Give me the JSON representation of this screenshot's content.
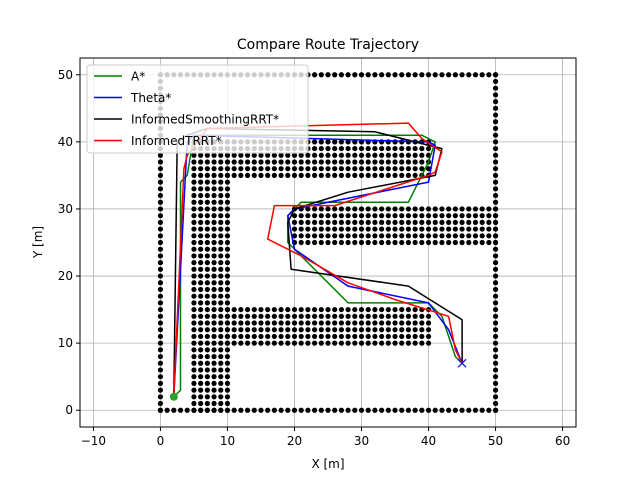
{
  "chart_data": {
    "type": "line",
    "title": "Compare Route Trajectory",
    "xlabel": "X [m]",
    "ylabel": "Y [m]",
    "xlim": [
      -12,
      62
    ],
    "ylim": [
      -2.5,
      52.5
    ],
    "xticks": [
      -10,
      0,
      10,
      20,
      30,
      40,
      50,
      60
    ],
    "yticks": [
      0,
      10,
      20,
      30,
      40,
      50
    ],
    "grid": true,
    "legend_position": "top-left",
    "start": [
      2,
      2
    ],
    "goal": [
      45,
      7
    ],
    "obstacle_segments": [
      {
        "orient": "h",
        "y": 0,
        "x0": 0,
        "x1": 50,
        "step": 1
      },
      {
        "orient": "h",
        "y": 50,
        "x0": 0,
        "x1": 50,
        "step": 1
      },
      {
        "orient": "v",
        "x": 0,
        "y0": 0,
        "y1": 50,
        "step": 1
      },
      {
        "orient": "v",
        "x": 50,
        "y0": 0,
        "y1": 50,
        "step": 1
      },
      {
        "orient": "block",
        "x0": 5,
        "x1": 10,
        "y0": 0,
        "y1": 40,
        "step": 1
      },
      {
        "orient": "block",
        "x0": 10,
        "x1": 40,
        "y0": 35,
        "y1": 40,
        "step": 1
      },
      {
        "orient": "block",
        "x0": 10,
        "x1": 40,
        "y0": 10,
        "y1": 15,
        "step": 1
      },
      {
        "orient": "block",
        "x0": 20,
        "x1": 50,
        "y0": 25,
        "y1": 30,
        "step": 1
      }
    ],
    "series": [
      {
        "name": "A*",
        "color": "#008000",
        "points": [
          [
            2,
            2
          ],
          [
            3,
            3
          ],
          [
            3,
            34
          ],
          [
            4,
            35
          ],
          [
            5,
            41
          ],
          [
            39,
            41
          ],
          [
            41,
            40
          ],
          [
            40,
            37
          ],
          [
            37,
            31
          ],
          [
            21,
            31
          ],
          [
            19,
            29
          ],
          [
            19,
            25
          ],
          [
            28,
            16
          ],
          [
            40,
            16
          ],
          [
            42,
            14
          ],
          [
            44,
            8
          ],
          [
            45,
            7
          ]
        ]
      },
      {
        "name": "Theta*",
        "color": "#0000ff",
        "points": [
          [
            2,
            2
          ],
          [
            4,
            40
          ],
          [
            5,
            41
          ],
          [
            40,
            40
          ],
          [
            41,
            39.5
          ],
          [
            40,
            34
          ],
          [
            20,
            30
          ],
          [
            19,
            29
          ],
          [
            20,
            24
          ],
          [
            28,
            18.5
          ],
          [
            40,
            16
          ],
          [
            43,
            12
          ],
          [
            45,
            7
          ]
        ]
      },
      {
        "name": "InformedSmoothingRRT*",
        "color": "#000000",
        "points": [
          [
            2,
            2
          ],
          [
            2.5,
            40
          ],
          [
            4,
            41
          ],
          [
            7,
            42
          ],
          [
            32,
            41.5
          ],
          [
            36,
            40.5
          ],
          [
            42,
            39
          ],
          [
            41,
            35
          ],
          [
            28,
            32.5
          ],
          [
            20,
            30
          ],
          [
            19,
            28
          ],
          [
            19.5,
            21
          ],
          [
            37,
            18.5
          ],
          [
            45,
            13.5
          ],
          [
            45,
            7
          ]
        ]
      },
      {
        "name": "InformedTRRT*",
        "color": "#ff0000",
        "points": [
          [
            2,
            2
          ],
          [
            3.5,
            36
          ],
          [
            4,
            38
          ],
          [
            7,
            42
          ],
          [
            37,
            42.8
          ],
          [
            39,
            40.5
          ],
          [
            42,
            38.5
          ],
          [
            41,
            35.5
          ],
          [
            40,
            35
          ],
          [
            26,
            30.5
          ],
          [
            17,
            30.5
          ],
          [
            16,
            25.5
          ],
          [
            21,
            23
          ],
          [
            28,
            19
          ],
          [
            35,
            16.5
          ],
          [
            43,
            14
          ],
          [
            44,
            9
          ],
          [
            45,
            7
          ]
        ]
      }
    ]
  }
}
